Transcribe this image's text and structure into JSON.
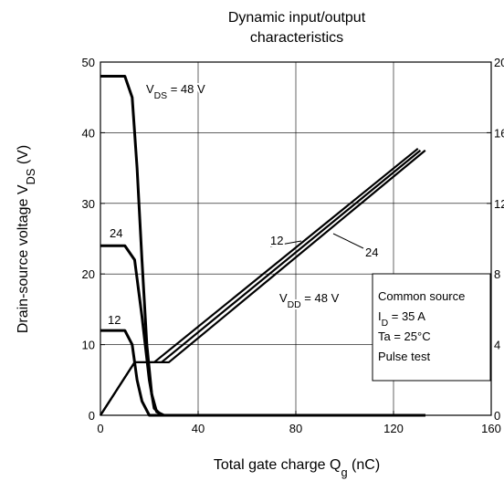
{
  "chart_data": {
    "type": "line",
    "title": [
      "Dynamic input/output",
      "characteristics"
    ],
    "xlabel": {
      "text": "Total gate charge   Q",
      "sub": "g",
      "tail": "   (nC)"
    },
    "ylabel": {
      "text": "Drain-source voltage   V",
      "sub": "DS",
      "tail": "   (V)"
    },
    "xlim": [
      0,
      160
    ],
    "xticks": [
      0,
      40,
      80,
      120,
      160
    ],
    "ylim": [
      0,
      50
    ],
    "yticks": [
      0,
      10,
      20,
      30,
      40,
      50
    ],
    "y2lim": [
      0,
      20
    ],
    "y2ticks": [
      0,
      4,
      8,
      12,
      16,
      20
    ],
    "grid": true,
    "color": "#000000",
    "series": [
      {
        "x": [
          0,
          10,
          13,
          15,
          17,
          19,
          21,
          23,
          26,
          133
        ],
        "values": [
          48,
          48,
          45,
          35,
          22,
          10,
          3,
          0.5,
          0,
          0
        ]
      },
      {
        "x": [
          0,
          10,
          14,
          17,
          20,
          22,
          25,
          133
        ],
        "values": [
          24,
          24,
          22,
          14,
          5,
          1,
          0,
          0
        ]
      },
      {
        "x": [
          0,
          10,
          13,
          15,
          17,
          20,
          133
        ],
        "values": [
          12,
          12,
          10,
          5,
          2,
          0,
          0
        ]
      },
      {
        "x": [
          0,
          14,
          22,
          130
        ],
        "values": [
          0,
          3,
          3,
          15.1
        ],
        "axis": "y2"
      },
      {
        "x": [
          0,
          14,
          25,
          131
        ],
        "values": [
          0,
          3,
          3,
          15.0
        ],
        "axis": "y2"
      },
      {
        "x": [
          0,
          14,
          28,
          133
        ],
        "values": [
          0,
          3,
          3,
          15.0
        ],
        "axis": "y2"
      }
    ],
    "annotations": [
      {
        "text": "V",
        "sub": "DS",
        "tail": " = 48 V"
      },
      {
        "text": "24"
      },
      {
        "text": "12"
      },
      {
        "text": "12"
      },
      {
        "text": "24"
      },
      {
        "text": "V",
        "sub": "DD",
        "tail": " = 48 V"
      }
    ],
    "conditions": [
      {
        "text": "Common source"
      },
      {
        "text": "I",
        "sub": "D",
        "tail": " = 35 A"
      },
      {
        "text": "Ta = 25°C"
      },
      {
        "text": "Pulse test"
      }
    ]
  }
}
